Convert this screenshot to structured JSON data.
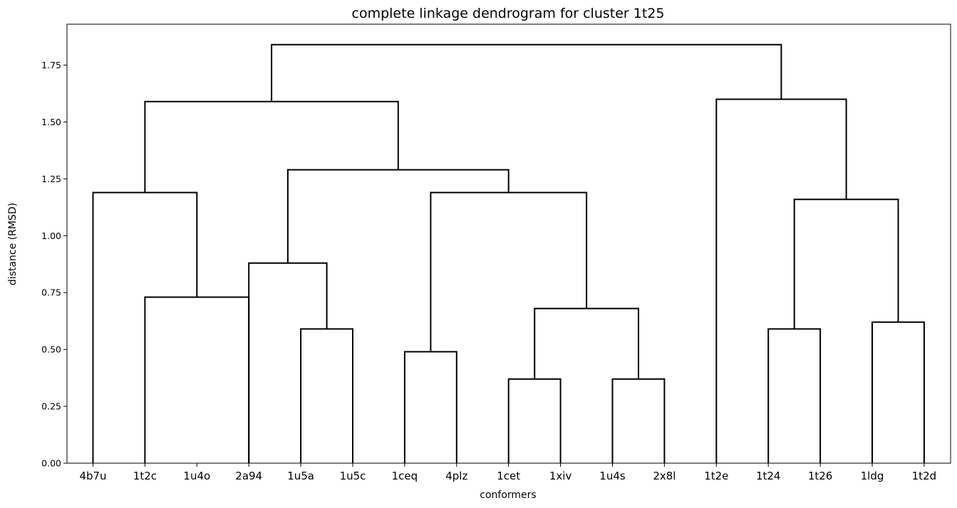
{
  "chart_data": {
    "type": "dendrogram",
    "title": "complete linkage dendrogram for cluster 1t25",
    "xlabel": "conformers",
    "ylabel": "distance (RMSD)",
    "ylim": [
      0,
      1.93
    ],
    "yticks": [
      0.0,
      0.25,
      0.5,
      0.75,
      1.0,
      1.25,
      1.5,
      1.75
    ],
    "ytick_labels": [
      "0.00",
      "0.25",
      "0.50",
      "0.75",
      "1.00",
      "1.25",
      "1.50",
      "1.75"
    ],
    "leaves": [
      "4b7u",
      "1t2c",
      "1u4o",
      "2a94",
      "1u5a",
      "1u5c",
      "1ceq",
      "4plz",
      "1cet",
      "1xiv",
      "1u4s",
      "2x8l",
      "1t2e",
      "1t24",
      "1t26",
      "1ldg",
      "1t2d"
    ],
    "merges": [
      {
        "left": "1cet",
        "right": "1xiv",
        "height": 0.37
      },
      {
        "left": "1u4s",
        "right": "2x8l",
        "height": 0.37
      },
      {
        "left": "1ceq",
        "right": "4plz",
        "height": 0.49
      },
      {
        "left": "1u5a",
        "right": "1u5c",
        "height": 0.59
      },
      {
        "left": "1t24",
        "right": "1t26",
        "height": 0.59
      },
      {
        "left": "1ldg",
        "right": "1t2d",
        "height": 0.62
      },
      {
        "left": "(1cet,1xiv)",
        "right": "(1u4s,2x8l)",
        "height": 0.68
      },
      {
        "left": "1t2c",
        "right": "1u4o",
        "height": 0.73
      },
      {
        "left": "2a94",
        "right": "(1u5a,1u5c)",
        "height": 0.88
      },
      {
        "left": "(1t24,1t26)",
        "right": "(1ldg,1t2d)",
        "height": 1.16
      },
      {
        "left": "4b7u",
        "right": "(1t2c,1u4o)",
        "height": 1.19
      },
      {
        "left": "(1ceq,4plz)",
        "right": "((1cet,1xiv),(1u4s,2x8l))",
        "height": 1.19
      },
      {
        "left": "(2a94,(1u5a,1u5c))",
        "right": "((1ceq,4plz),((1cet,1xiv),(1u4s,2x8l)))",
        "height": 1.29
      },
      {
        "left": "(4b7u,(1t2c,1u4o))",
        "right": "((2a94,...),(...))",
        "height": 1.59
      },
      {
        "left": "1t2e",
        "right": "((1t24,1t26),(1ldg,1t2d))",
        "height": 1.6
      },
      {
        "left": "left-group",
        "right": "right-group",
        "height": 1.84
      }
    ],
    "links": [
      {
        "x": [
          1,
          1,
          3,
          3
        ],
        "y": [
          0,
          0.73,
          0.73,
          0
        ]
      },
      {
        "x": [
          0,
          0,
          2,
          2
        ],
        "y": [
          0,
          1.19,
          1.19,
          0.73
        ]
      },
      {
        "x": [
          4,
          4,
          5,
          5
        ],
        "y": [
          0,
          0.59,
          0.59,
          0
        ]
      },
      {
        "x": [
          3,
          3,
          4.5,
          4.5
        ],
        "y": [
          0,
          0.88,
          0.88,
          0.59
        ]
      },
      {
        "x": [
          6,
          6,
          7,
          7
        ],
        "y": [
          0,
          0.49,
          0.49,
          0
        ]
      },
      {
        "x": [
          8,
          8,
          9,
          9
        ],
        "y": [
          0,
          0.37,
          0.37,
          0
        ]
      },
      {
        "x": [
          10,
          10,
          11,
          11
        ],
        "y": [
          0,
          0.37,
          0.37,
          0
        ]
      },
      {
        "x": [
          8.5,
          8.5,
          10.5,
          10.5
        ],
        "y": [
          0.37,
          0.68,
          0.68,
          0.37
        ]
      },
      {
        "x": [
          6.5,
          6.5,
          9.5,
          9.5
        ],
        "y": [
          0.49,
          1.19,
          1.19,
          0.68
        ]
      },
      {
        "x": [
          3.75,
          3.75,
          8,
          8
        ],
        "y": [
          0.88,
          1.29,
          1.29,
          1.19
        ]
      },
      {
        "x": [
          1,
          1,
          5.875,
          5.875
        ],
        "y": [
          1.19,
          1.59,
          1.59,
          1.29
        ]
      },
      {
        "x": [
          13,
          13,
          14,
          14
        ],
        "y": [
          0,
          0.59,
          0.59,
          0
        ]
      },
      {
        "x": [
          15,
          15,
          16,
          16
        ],
        "y": [
          0,
          0.62,
          0.62,
          0
        ]
      },
      {
        "x": [
          13.5,
          13.5,
          15.5,
          15.5
        ],
        "y": [
          0.59,
          1.16,
          1.16,
          0.62
        ]
      },
      {
        "x": [
          12,
          12,
          14.5,
          14.5
        ],
        "y": [
          0,
          1.6,
          1.6,
          1.16
        ]
      },
      {
        "x": [
          3.4375,
          3.4375,
          13.25,
          13.25
        ],
        "y": [
          1.59,
          1.84,
          1.84,
          1.6
        ]
      }
    ],
    "color": "#000000",
    "grid": false,
    "legend": "none"
  }
}
